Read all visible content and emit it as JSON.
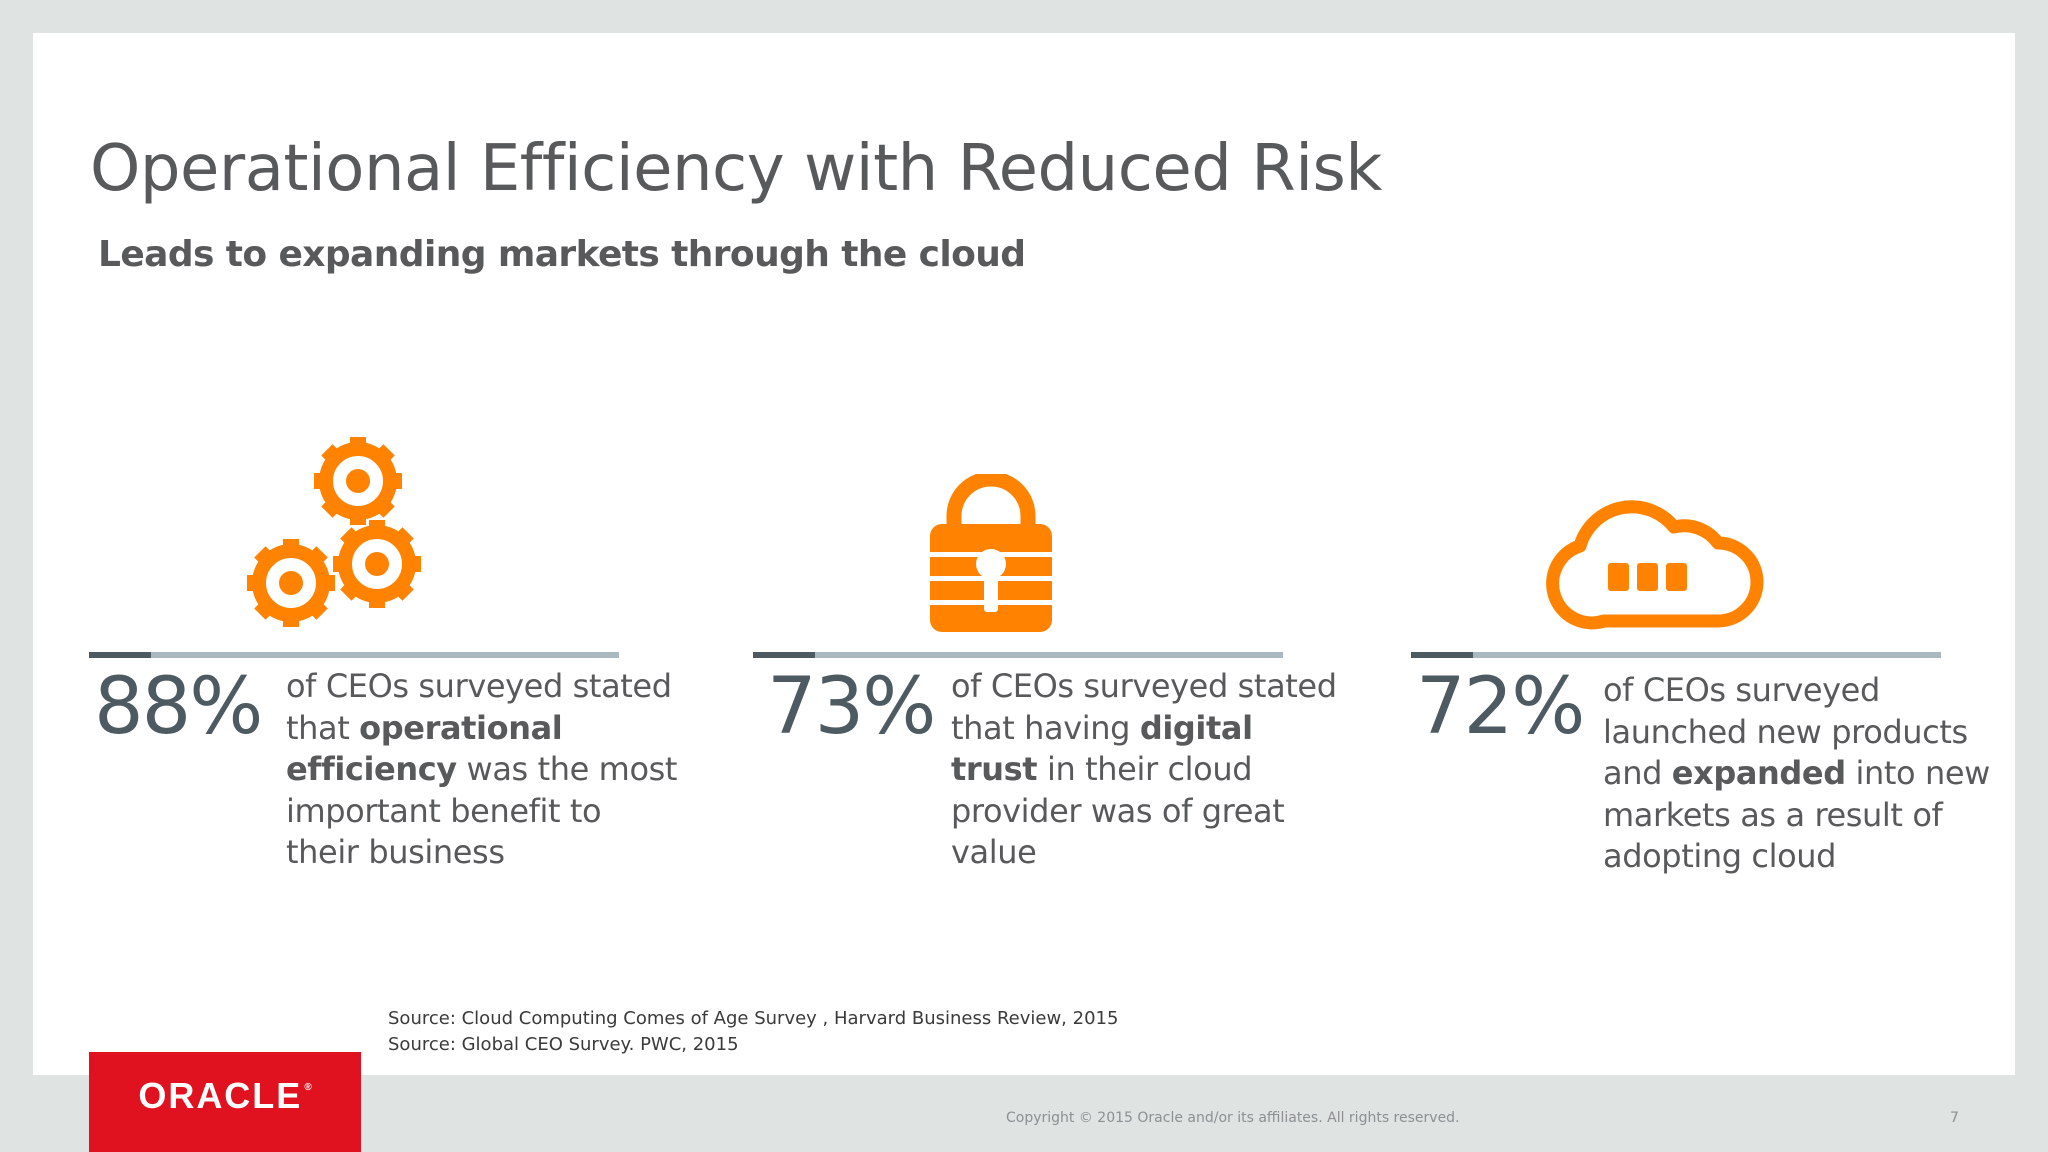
{
  "title": "Operational Efficiency with Reduced Risk",
  "subtitle": "Leads to expanding markets through the cloud",
  "colors": {
    "accent": "#ff8200",
    "stat_dark": "#4d5a62",
    "line_light": "#aab8bf",
    "brand_red": "#e0121f"
  },
  "stats": [
    {
      "icon": "gears-icon",
      "value": "88%",
      "text_before": "of CEOs surveyed stated that ",
      "text_bold": "operational efficiency",
      "text_after": " was the most important benefit to their business"
    },
    {
      "icon": "lock-icon",
      "value": "73%",
      "text_before": "of CEOs surveyed stated that having ",
      "text_bold": "digital trust",
      "text_after": " in their cloud provider was of great value"
    },
    {
      "icon": "cloud-icon",
      "value": "72%",
      "text_before": "of CEOs surveyed launched new products and ",
      "text_bold": "expanded",
      "text_after": " into new markets as a result of adopting cloud"
    }
  ],
  "sources": [
    "Source:  Cloud Computing Comes of Age Survey , Harvard Business Review, 2015",
    "Source:  Global CEO Survey. PWC, 2015"
  ],
  "footer": {
    "logo_text": "ORACLE",
    "logo_mark": "®",
    "copyright": "Copyright © 2015 Oracle and/or its affiliates. All rights reserved.",
    "page_number": "7"
  }
}
